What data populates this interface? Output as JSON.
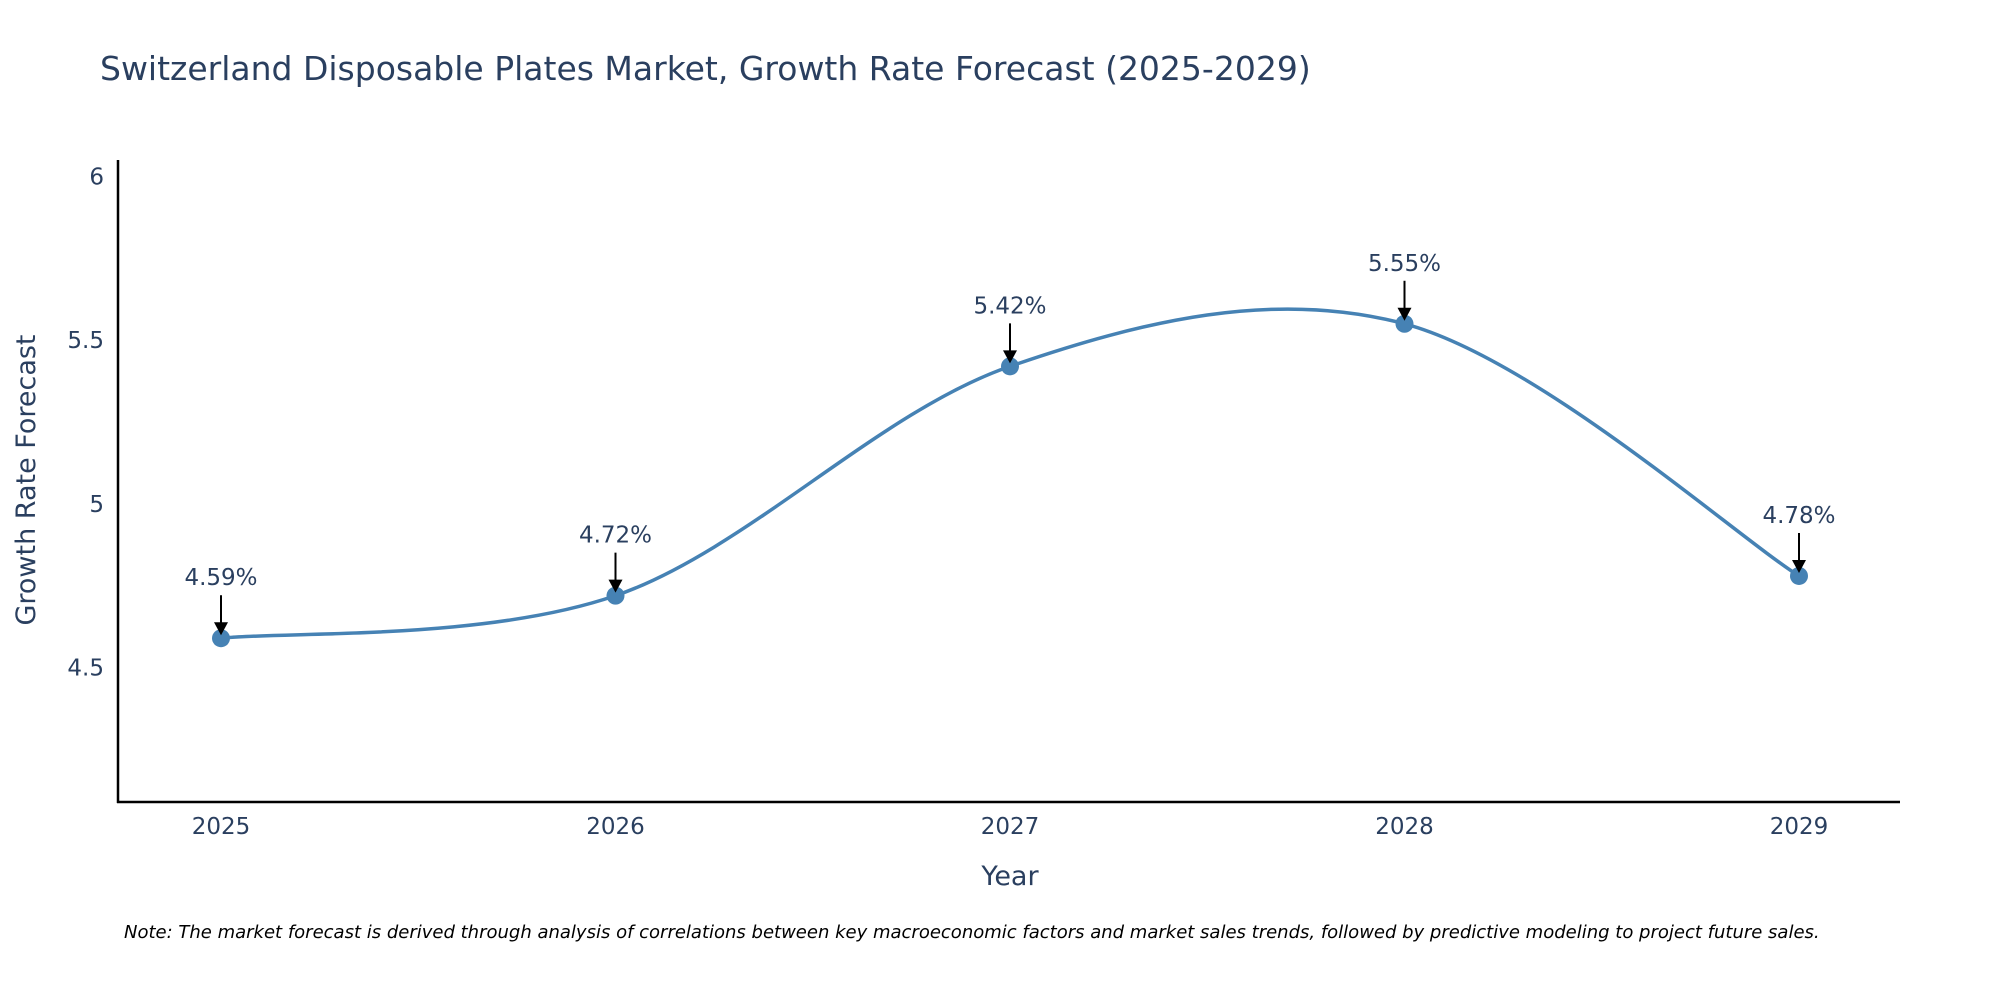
{
  "chart_data": {
    "type": "line",
    "title": "Switzerland Disposable Plates Market, Growth Rate Forecast (2025-2029)",
    "xlabel": "Year",
    "ylabel": "Growth Rate Forecast",
    "categories": [
      "2025",
      "2026",
      "2027",
      "2028",
      "2029"
    ],
    "series": [
      {
        "name": "Growth Rate Forecast",
        "values": [
          4.59,
          4.72,
          5.42,
          5.55,
          4.78
        ],
        "labels": [
          "4.59%",
          "4.72%",
          "5.42%",
          "5.55%",
          "4.78%"
        ]
      }
    ],
    "ylim": [
      4.09,
      6.05
    ],
    "yticks": [
      4.5,
      5,
      5.5,
      6
    ],
    "ytick_labels": [
      "4.5",
      "5",
      "5.5",
      "6"
    ],
    "grid": false,
    "line_color": "#4682B4",
    "arrow_color": "#000000"
  },
  "note": "Note: The market forecast is derived through analysis of correlations between key macroeconomic factors and market sales trends, followed by predictive modeling to project future sales."
}
